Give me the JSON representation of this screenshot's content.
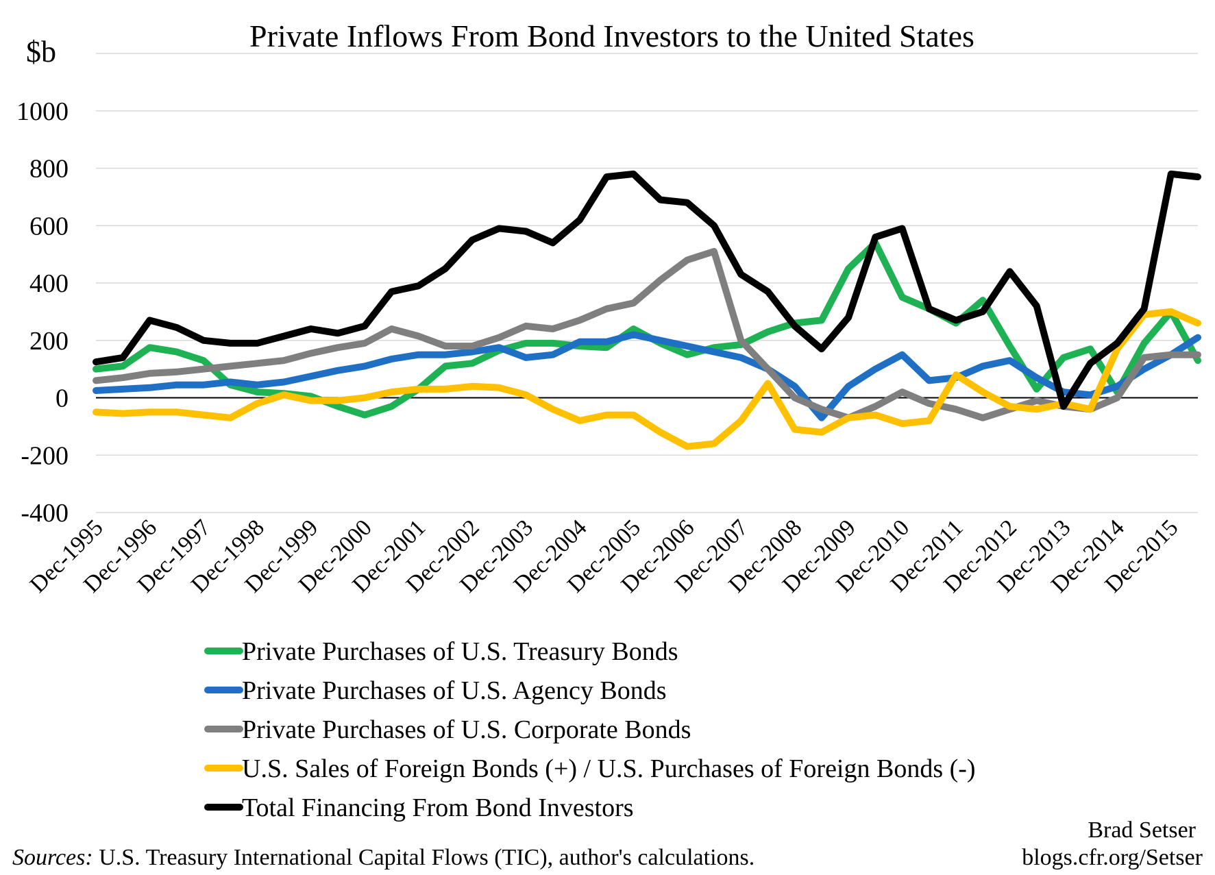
{
  "chart_data": {
    "type": "line",
    "title": "Private Inflows From Bond Investors to the United States",
    "ylabel": "$b",
    "ylim": [
      -400,
      1200
    ],
    "yticks": [
      -400,
      -200,
      0,
      200,
      400,
      600,
      800,
      1000
    ],
    "grid": "horizontal",
    "legend_position": "bottom",
    "x_start": "Dec-1995",
    "x_end": "Jun-2016",
    "x_tick_labels": [
      "Dec-1995",
      "Dec-1996",
      "Dec-1997",
      "Dec-1998",
      "Dec-1999",
      "Dec-2000",
      "Dec-2001",
      "Dec-2002",
      "Dec-2003",
      "Dec-2004",
      "Dec-2005",
      "Dec-2006",
      "Dec-2007",
      "Dec-2008",
      "Dec-2009",
      "Dec-2010",
      "Dec-2011",
      "Dec-2012",
      "Dec-2013",
      "Dec-2014",
      "Dec-2015"
    ],
    "x": [
      "Dec-1995",
      "Jun-1996",
      "Dec-1996",
      "Jun-1997",
      "Dec-1997",
      "Jun-1998",
      "Dec-1998",
      "Jun-1999",
      "Dec-1999",
      "Jun-2000",
      "Dec-2000",
      "Jun-2001",
      "Dec-2001",
      "Jun-2002",
      "Dec-2002",
      "Jun-2003",
      "Dec-2003",
      "Jun-2004",
      "Dec-2004",
      "Jun-2005",
      "Dec-2005",
      "Jun-2006",
      "Dec-2006",
      "Jun-2007",
      "Dec-2007",
      "Jun-2008",
      "Dec-2008",
      "Jun-2009",
      "Dec-2009",
      "Jun-2010",
      "Dec-2010",
      "Jun-2011",
      "Dec-2011",
      "Jun-2012",
      "Dec-2012",
      "Jun-2013",
      "Dec-2013",
      "Jun-2014",
      "Dec-2014",
      "Jun-2015",
      "Dec-2015",
      "Jun-2016"
    ],
    "series": [
      {
        "name": "Private Purchases of U.S. Treasury Bonds",
        "color": "#1fb254",
        "values": [
          100,
          110,
          175,
          160,
          130,
          45,
          20,
          15,
          5,
          -30,
          -60,
          -30,
          30,
          110,
          120,
          165,
          190,
          190,
          180,
          175,
          240,
          190,
          150,
          175,
          185,
          230,
          260,
          270,
          450,
          540,
          350,
          310,
          260,
          340,
          180,
          30,
          140,
          170,
          20,
          190,
          300,
          130
        ]
      },
      {
        "name": "Private Purchases of U.S. Agency Bonds",
        "color": "#1f6fc5",
        "values": [
          25,
          30,
          35,
          45,
          45,
          55,
          45,
          55,
          75,
          95,
          110,
          135,
          150,
          150,
          160,
          175,
          140,
          150,
          195,
          195,
          220,
          200,
          180,
          160,
          140,
          100,
          40,
          -70,
          40,
          100,
          150,
          60,
          70,
          110,
          130,
          70,
          20,
          10,
          40,
          100,
          150,
          210
        ]
      },
      {
        "name": "Private Purchases of U.S. Corporate Bonds",
        "color": "#7f7f7f",
        "values": [
          60,
          70,
          85,
          90,
          100,
          110,
          120,
          130,
          155,
          175,
          190,
          240,
          215,
          180,
          180,
          210,
          250,
          240,
          270,
          310,
          330,
          410,
          480,
          510,
          200,
          100,
          0,
          -40,
          -70,
          -30,
          20,
          -20,
          -40,
          -70,
          -40,
          -10,
          -30,
          -40,
          0,
          140,
          150,
          150
        ]
      },
      {
        "name": "U.S. Sales of Foreign Bonds (+) / U.S. Purchases of Foreign Bonds (-)",
        "color": "#ffc000",
        "values": [
          -50,
          -55,
          -50,
          -50,
          -60,
          -70,
          -20,
          10,
          -10,
          -10,
          0,
          20,
          30,
          30,
          40,
          35,
          10,
          -40,
          -80,
          -60,
          -60,
          -120,
          -170,
          -160,
          -80,
          50,
          -110,
          -120,
          -70,
          -60,
          -90,
          -80,
          80,
          20,
          -30,
          -40,
          -20,
          -40,
          170,
          290,
          300,
          260
        ]
      },
      {
        "name": "Total Financing From Bond Investors",
        "color": "#000000",
        "values": [
          125,
          140,
          270,
          245,
          200,
          190,
          190,
          215,
          240,
          225,
          250,
          370,
          390,
          450,
          550,
          590,
          580,
          540,
          620,
          770,
          780,
          690,
          680,
          600,
          430,
          370,
          250,
          170,
          280,
          560,
          590,
          310,
          270,
          300,
          440,
          320,
          -30,
          120,
          190,
          310,
          780,
          770
        ]
      }
    ]
  },
  "footer": {
    "sources_label": "Sources:",
    "sources_text": " U.S. Treasury International Capital Flows (TIC), author's calculations.",
    "author": "Brad Setser",
    "website": "blogs.cfr.org/Setser"
  }
}
